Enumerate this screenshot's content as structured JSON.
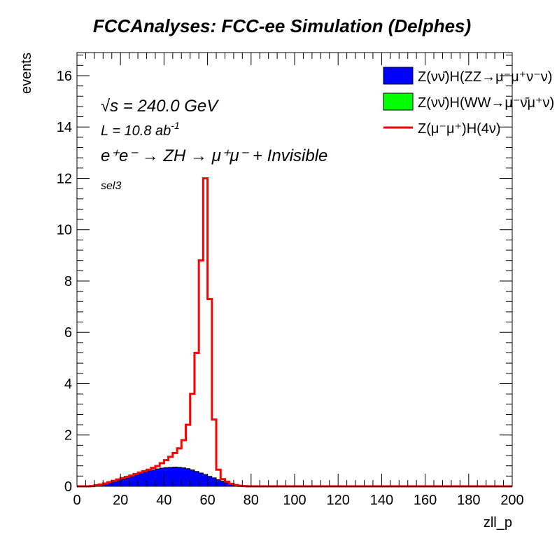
{
  "chart_data": {
    "type": "histogram",
    "title": "FCCAnalyses: FCC-ee Simulation (Delphes)",
    "xlabel": "zll_p",
    "ylabel": "events",
    "xlim": [
      0,
      200
    ],
    "ylim": [
      0,
      16.9
    ],
    "x_ticks": [
      0,
      20,
      40,
      60,
      80,
      100,
      120,
      140,
      160,
      180,
      200
    ],
    "y_ticks": [
      0,
      2,
      4,
      6,
      8,
      10,
      12,
      14,
      16
    ],
    "bin_width": 2,
    "bin_edges_start": 0,
    "grid": false,
    "legend_position": "top-right",
    "annotations": {
      "sqrt_s": "√s = 240.0 GeV",
      "lumi_base": "L = 10.8 ab",
      "lumi_exp": "-1",
      "process": "e⁺e⁻ → ZH → μ⁺μ⁻ + Invisible",
      "selection": "sel3"
    },
    "series": [
      {
        "name": "Z(νν̄)H(ZZ→μ⁻μ⁺ν⁻ν)",
        "style": "filled",
        "color": "#0000ff",
        "values": [
          0,
          0,
          0,
          0.01,
          0.03,
          0.06,
          0.09,
          0.13,
          0.17,
          0.22,
          0.27,
          0.33,
          0.38,
          0.44,
          0.5,
          0.55,
          0.6,
          0.64,
          0.68,
          0.71,
          0.73,
          0.74,
          0.75,
          0.74,
          0.72,
          0.69,
          0.64,
          0.58,
          0.52,
          0.46,
          0.39,
          0.33,
          0.26,
          0.2,
          0.14,
          0.09,
          0.05,
          0.02,
          0.01,
          0,
          0,
          0,
          0,
          0,
          0,
          0,
          0,
          0,
          0,
          0,
          0,
          0,
          0,
          0,
          0,
          0,
          0,
          0,
          0,
          0,
          0,
          0,
          0,
          0,
          0,
          0,
          0,
          0,
          0,
          0,
          0,
          0,
          0,
          0,
          0,
          0,
          0,
          0,
          0,
          0,
          0,
          0,
          0,
          0,
          0,
          0,
          0,
          0,
          0,
          0,
          0,
          0,
          0,
          0,
          0,
          0,
          0,
          0,
          0,
          0
        ]
      },
      {
        "name": "Z(νν̄)H(WW→μ⁻ν̄μ⁺ν)",
        "style": "filled",
        "color": "#00ff00",
        "values": [
          0,
          0,
          0,
          0,
          0,
          0,
          0,
          0,
          0,
          0,
          0,
          0,
          0,
          0,
          0,
          0,
          0,
          0,
          0,
          0,
          0,
          0,
          0,
          0,
          0,
          0,
          0,
          0,
          0,
          0,
          0,
          0,
          0,
          0,
          0,
          0,
          0,
          0,
          0,
          0,
          0,
          0,
          0,
          0,
          0,
          0,
          0,
          0,
          0,
          0,
          0,
          0,
          0,
          0,
          0,
          0,
          0,
          0,
          0,
          0,
          0,
          0,
          0,
          0,
          0,
          0,
          0,
          0,
          0,
          0,
          0,
          0,
          0,
          0,
          0,
          0,
          0,
          0,
          0,
          0,
          0,
          0,
          0,
          0,
          0,
          0,
          0,
          0,
          0,
          0,
          0,
          0,
          0,
          0,
          0,
          0,
          0,
          0,
          0,
          0
        ]
      },
      {
        "name": "Z(μ⁻μ⁺)H(4ν)",
        "style": "line",
        "color": "#ff0000",
        "values": [
          0,
          0,
          0,
          0.01,
          0.04,
          0.07,
          0.11,
          0.16,
          0.21,
          0.27,
          0.32,
          0.37,
          0.42,
          0.48,
          0.54,
          0.59,
          0.65,
          0.72,
          0.79,
          0.9,
          1.02,
          1.15,
          1.3,
          1.48,
          1.8,
          2.4,
          3.6,
          5.2,
          8.8,
          12.0,
          7.3,
          2.6,
          0.65,
          0.28,
          0.18,
          0.1,
          0.05,
          0.02,
          0.01,
          0,
          0,
          0,
          0,
          0,
          0,
          0,
          0,
          0,
          0,
          0,
          0,
          0,
          0,
          0,
          0,
          0,
          0,
          0,
          0,
          0,
          0,
          0,
          0,
          0,
          0,
          0,
          0,
          0,
          0,
          0,
          0,
          0,
          0,
          0,
          0,
          0,
          0,
          0,
          0,
          0,
          0,
          0,
          0,
          0,
          0,
          0,
          0,
          0,
          0,
          0,
          0,
          0,
          0,
          0,
          0,
          0,
          0,
          0,
          0,
          0
        ]
      }
    ]
  }
}
